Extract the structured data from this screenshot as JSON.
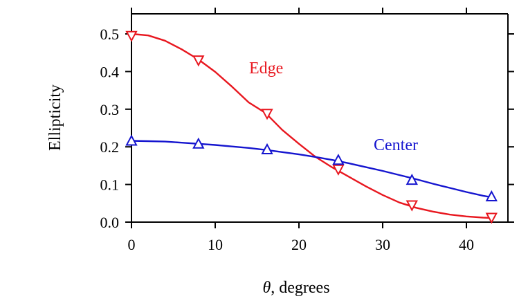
{
  "chart_data": {
    "type": "line",
    "xlabel_symbol": "θ",
    "xlabel_rest": ", degrees",
    "ylabel": "Ellipticity",
    "xlim": [
      0,
      45
    ],
    "ylim": [
      0,
      0.55
    ],
    "xticks": [
      0,
      10,
      20,
      30,
      40
    ],
    "xtick_labels": [
      "0",
      "10",
      "20",
      "30",
      "40"
    ],
    "yticks": [
      0.0,
      0.1,
      0.2,
      0.3,
      0.4,
      0.5
    ],
    "ytick_labels": [
      "0.0",
      "0.1",
      "0.2",
      "0.3",
      "0.4",
      "0.5"
    ],
    "grid": false,
    "series": [
      {
        "name": "Edge",
        "color": "#e8171f",
        "marker": "triangle-down",
        "x": [
          0,
          8,
          16.2,
          24.7,
          33.5,
          43
        ],
        "y": [
          0.495,
          0.43,
          0.288,
          0.14,
          0.045,
          0.012
        ],
        "curve_x": [
          0,
          2,
          4,
          6,
          8,
          10,
          12,
          14,
          16,
          18,
          20,
          22,
          24,
          26,
          28,
          30,
          32,
          34,
          36,
          38,
          40,
          42,
          43
        ],
        "curve_y": [
          0.5,
          0.496,
          0.482,
          0.459,
          0.432,
          0.399,
          0.36,
          0.318,
          0.29,
          0.245,
          0.208,
          0.173,
          0.145,
          0.12,
          0.095,
          0.072,
          0.052,
          0.038,
          0.028,
          0.02,
          0.015,
          0.012,
          0.011
        ]
      },
      {
        "name": "Center",
        "color": "#1515cf",
        "marker": "triangle-up",
        "x": [
          0,
          8,
          16.2,
          24.7,
          33.5,
          43
        ],
        "y": [
          0.216,
          0.208,
          0.193,
          0.165,
          0.112,
          0.068
        ],
        "curve_x": [
          0,
          2,
          4,
          6,
          8,
          10,
          12,
          14,
          16,
          18,
          20,
          22,
          24,
          26,
          28,
          30,
          32,
          34,
          36,
          38,
          40,
          42,
          43
        ],
        "curve_y": [
          0.216,
          0.215,
          0.214,
          0.211,
          0.208,
          0.205,
          0.201,
          0.197,
          0.192,
          0.186,
          0.18,
          0.173,
          0.165,
          0.156,
          0.146,
          0.136,
          0.125,
          0.114,
          0.102,
          0.091,
          0.08,
          0.07,
          0.066
        ]
      }
    ]
  }
}
